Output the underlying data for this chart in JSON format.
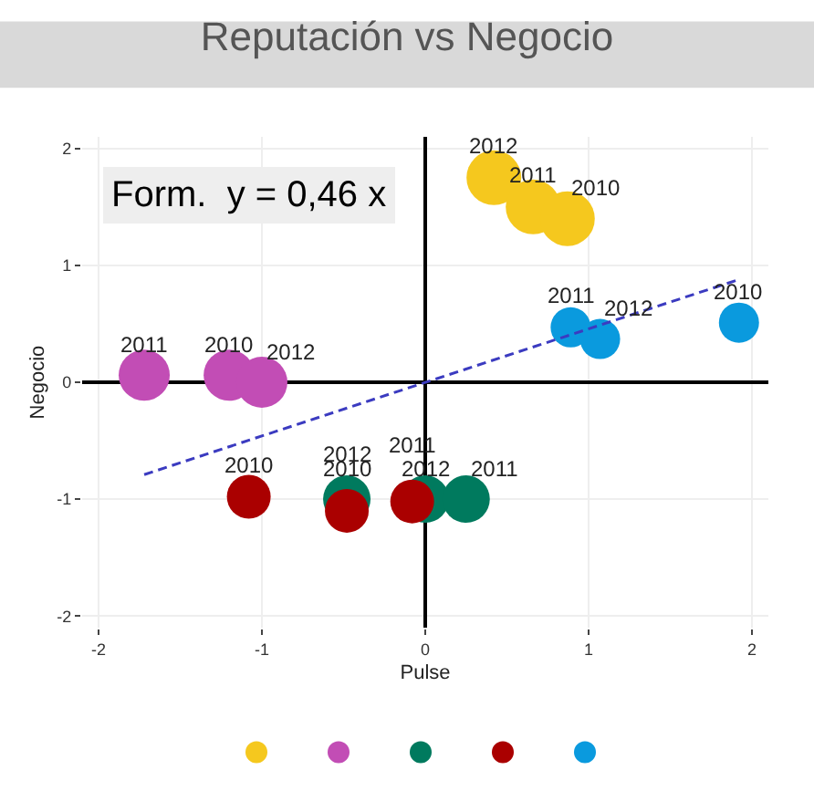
{
  "chart_data": {
    "type": "scatter",
    "title": "Reputación vs Negocio",
    "xlabel": "Pulse",
    "ylabel": "Negocio",
    "xlim": [
      -2.1,
      2.1
    ],
    "ylim": [
      -2.1,
      2.1
    ],
    "xticks": [
      -2,
      -1,
      0,
      1,
      2
    ],
    "yticks": [
      -2,
      -1,
      0,
      1,
      2
    ],
    "grid": true,
    "marker": "circle",
    "series": [
      {
        "color": "#f5c81e",
        "x": [
          0.42,
          0.66,
          0.87
        ],
        "values": [
          1.75,
          1.5,
          1.4
        ]
      },
      {
        "color": "#c24db5",
        "x": [
          -1.72,
          -1.2,
          -1.0
        ],
        "values": [
          0.06,
          0.06,
          0.0
        ]
      },
      {
        "color": "#007a5e",
        "x": [
          -0.48,
          0.0,
          0.25
        ],
        "values": [
          -1.0,
          -1.0,
          -1.0
        ]
      },
      {
        "color": "#aa0000",
        "x": [
          -1.08,
          -0.48,
          -0.08
        ],
        "values": [
          -0.98,
          -1.1,
          -1.02
        ]
      },
      {
        "color": "#0a9ade",
        "x": [
          0.89,
          1.07,
          1.92
        ],
        "values": [
          0.47,
          0.37,
          0.51
        ]
      },
      {
        "type": "line",
        "color": "#3b3bc0",
        "line_style": "dashed",
        "marker": "none",
        "x": [
          -1.72,
          1.9
        ],
        "values": [
          -0.79,
          0.87
        ]
      }
    ],
    "annotations": [
      "Form.  y = 0,46 x",
      {
        "text": "2012",
        "x": 0.42,
        "y": 1.75
      },
      {
        "text": "2011",
        "x": 0.66,
        "y": 1.5
      },
      {
        "text": "2010",
        "x": 0.87,
        "y": 1.4
      },
      {
        "text": "2011",
        "x": -1.72,
        "y": 0.06
      },
      {
        "text": "2010",
        "x": -1.2,
        "y": 0.06
      },
      {
        "text": "2012",
        "x": -1.0,
        "y": 0.0
      },
      {
        "text": "2010",
        "x": -0.48,
        "y": -1.0
      },
      {
        "text": "2012",
        "x": 0.0,
        "y": -1.0
      },
      {
        "text": "2011",
        "x": 0.25,
        "y": -1.0
      },
      {
        "text": "2010",
        "x": -1.08,
        "y": -0.98
      },
      {
        "text": "2012",
        "x": -0.48,
        "y": -1.1
      },
      {
        "text": "2011",
        "x": -0.08,
        "y": -1.02
      },
      {
        "text": "2011",
        "x": 0.89,
        "y": 0.47
      },
      {
        "text": "2012",
        "x": 1.07,
        "y": 0.37
      },
      {
        "text": "2010",
        "x": 1.92,
        "y": 0.51
      }
    ]
  }
}
